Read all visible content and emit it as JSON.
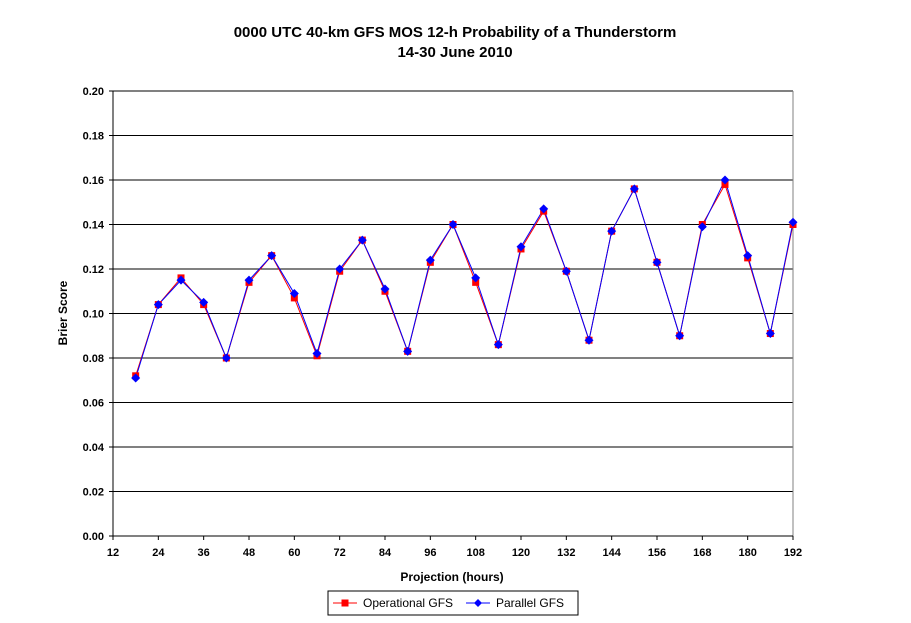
{
  "chart_data": {
    "type": "line",
    "title": "0000 UTC 40-km GFS MOS 12-h Probability of a Thunderstorm",
    "subtitle": "14-30 June 2010",
    "xlabel": "Projection (hours)",
    "ylabel": "Brier Score",
    "xlim": [
      12,
      192
    ],
    "ylim": [
      0,
      0.2
    ],
    "x_ticks": [
      "12",
      "24",
      "36",
      "48",
      "60",
      "72",
      "84",
      "96",
      "108",
      "120",
      "132",
      "144",
      "156",
      "168",
      "180",
      "192"
    ],
    "y_ticks": [
      "0.00",
      "0.02",
      "0.04",
      "0.06",
      "0.08",
      "0.10",
      "0.12",
      "0.14",
      "0.16",
      "0.18",
      "0.20"
    ],
    "grid": "horizontal",
    "legend_position": "bottom",
    "x": [
      18,
      24,
      30,
      36,
      42,
      48,
      54,
      60,
      66,
      72,
      78,
      84,
      90,
      96,
      102,
      108,
      114,
      120,
      126,
      132,
      138,
      144,
      150,
      156,
      162,
      168,
      174,
      180,
      186,
      192
    ],
    "series": [
      {
        "name": "Operational GFS",
        "color": "#ff0000",
        "marker": "square",
        "values": [
          0.072,
          0.104,
          0.116,
          0.104,
          0.08,
          0.114,
          0.126,
          0.107,
          0.081,
          0.119,
          0.133,
          0.11,
          0.083,
          0.123,
          0.14,
          0.114,
          0.086,
          0.129,
          0.146,
          0.119,
          0.088,
          0.137,
          0.156,
          0.123,
          0.09,
          0.14,
          0.158,
          0.125,
          0.091,
          0.14
        ]
      },
      {
        "name": "Parallel GFS",
        "color": "#0000ff",
        "marker": "diamond",
        "values": [
          0.071,
          0.104,
          0.115,
          0.105,
          0.08,
          0.115,
          0.126,
          0.109,
          0.082,
          0.12,
          0.133,
          0.111,
          0.083,
          0.124,
          0.14,
          0.116,
          0.086,
          0.13,
          0.147,
          0.119,
          0.088,
          0.137,
          0.156,
          0.123,
          0.09,
          0.139,
          0.16,
          0.126,
          0.091,
          0.141
        ]
      }
    ]
  }
}
